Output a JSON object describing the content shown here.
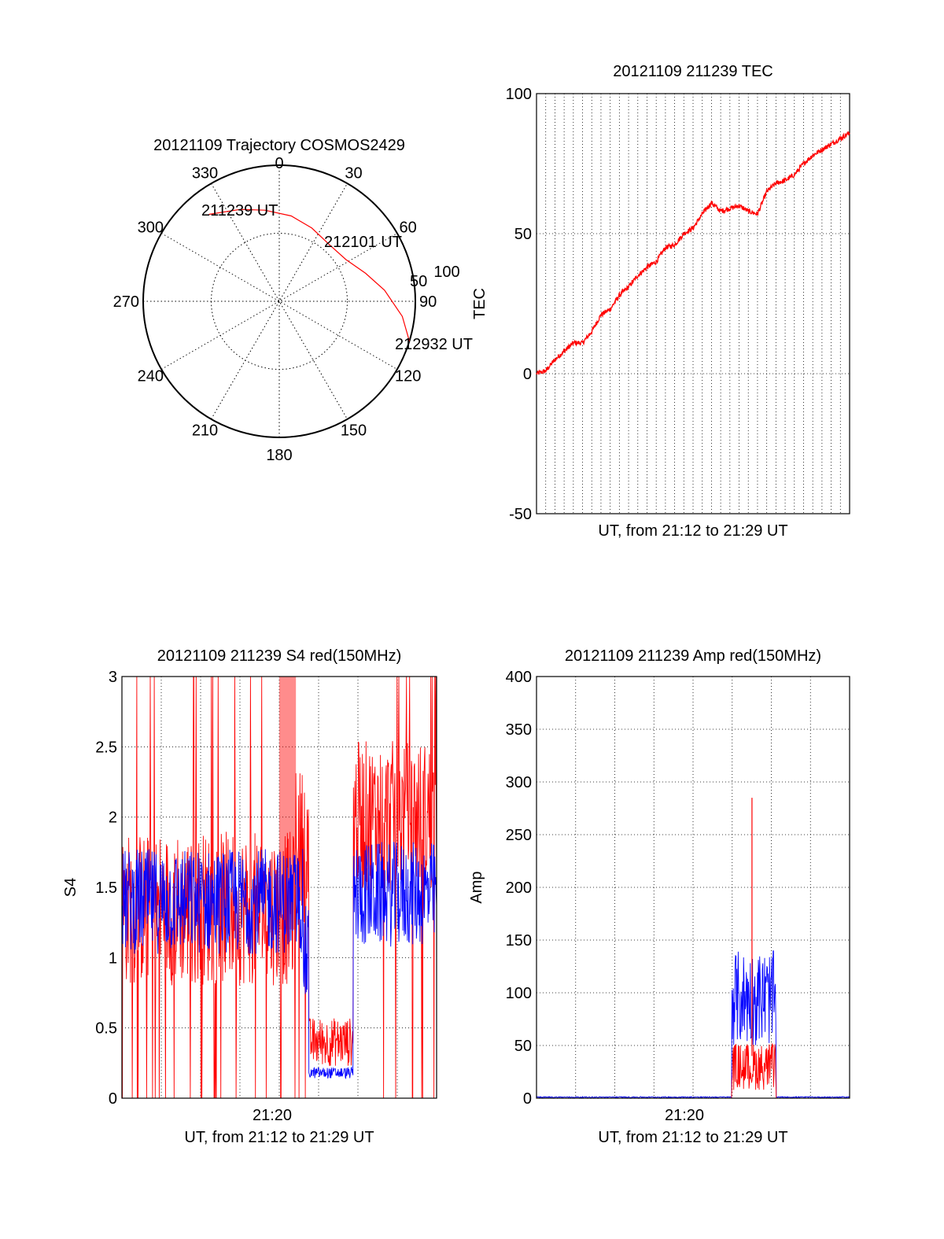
{
  "colors": {
    "red": "#ff0000",
    "blue": "#0000ff",
    "grid": "#000000"
  },
  "chart_data": [
    {
      "id": "trajectory",
      "type": "polar",
      "title": "20121109 Trajectory COSMOS2429",
      "azimuth_labels": [
        "0",
        "30",
        "60",
        "90",
        "120",
        "150",
        "180",
        "210",
        "240",
        "270",
        "300",
        "330"
      ],
      "elevation_ticks": [
        "50",
        "100"
      ],
      "track": [
        {
          "az": 321,
          "el": 16
        },
        {
          "az": 337,
          "el": 24
        },
        {
          "az": 351,
          "el": 29
        },
        {
          "az": 8,
          "el": 33
        },
        {
          "az": 24,
          "el": 37
        },
        {
          "az": 42,
          "el": 40
        },
        {
          "az": 58,
          "el": 38
        },
        {
          "az": 72,
          "el": 30
        },
        {
          "az": 84,
          "el": 20
        },
        {
          "az": 97,
          "el": 8
        },
        {
          "az": 107,
          "el": 0
        }
      ],
      "annotations": [
        "211239 UT",
        "212101 UT",
        "212932 UT"
      ]
    },
    {
      "id": "tec",
      "type": "line",
      "title": "20121109 211239 TEC",
      "ylabel": "TEC",
      "xlabel": "UT, from 21:12 to 21:29 UT",
      "ylim": [
        -50,
        100
      ],
      "yticks": [
        "100",
        "50",
        "0",
        "-50"
      ],
      "xlim_minutes": [
        0,
        17
      ],
      "series": [
        {
          "color": "red",
          "x": [
            0.0,
            0.5,
            1.0,
            1.5,
            2.0,
            2.5,
            3.0,
            3.5,
            4.0,
            4.5,
            5.0,
            5.5,
            6.0,
            6.5,
            7.0,
            7.5,
            8.0,
            8.5,
            9.0,
            9.5,
            10.0,
            10.5,
            11.0,
            11.5,
            12.0,
            12.5,
            13.0,
            13.5,
            14.0,
            14.5,
            15.0,
            15.5,
            16.0,
            16.5,
            17.0
          ],
          "y": [
            0,
            1,
            5,
            8,
            11,
            11,
            15,
            21,
            23,
            28,
            31,
            35,
            38,
            40,
            45,
            46,
            50,
            52,
            57,
            61,
            58,
            59,
            60,
            58,
            57,
            65,
            68,
            69,
            71,
            75,
            78,
            80,
            82,
            84,
            86
          ]
        }
      ]
    },
    {
      "id": "s4",
      "type": "line",
      "title": "20121109 211239 S4 red(150MHz)",
      "ylabel": "S4",
      "xlabel": "UT, from 21:12 to 21:29 UT",
      "xtick": "21:20",
      "ylim": [
        0,
        3
      ],
      "yticks": [
        "3",
        "2.5",
        "2",
        "1.5",
        "1",
        "0.5",
        "0"
      ],
      "series": [
        {
          "color": "red",
          "description_ranges": [
            [
              0,
              9.3,
              1.35
            ],
            [
              9.3,
              10.1,
              1.8
            ],
            [
              10.1,
              12.5,
              0.4
            ],
            [
              12.5,
              17,
              2.0
            ]
          ]
        },
        {
          "color": "blue",
          "description_ranges": [
            [
              0,
              9.8,
              1.4
            ],
            [
              9.8,
              10.1,
              1.0
            ],
            [
              10.1,
              12.5,
              0.18
            ],
            [
              12.5,
              17,
              1.45
            ]
          ]
        }
      ]
    },
    {
      "id": "amp",
      "type": "line",
      "title": "20121109 211239 Amp red(150MHz)",
      "ylabel": "Amp",
      "xlabel": "UT, from 21:12 to 21:29 UT",
      "xtick": "21:20",
      "ylim": [
        0,
        400
      ],
      "yticks": [
        "400",
        "350",
        "300",
        "250",
        "200",
        "150",
        "100",
        "50",
        "0"
      ],
      "series": [
        {
          "color": "blue",
          "description_ranges": [
            [
              0,
              10.6,
              1
            ],
            [
              10.6,
              13.0,
              95
            ],
            [
              13.0,
              17,
              1
            ]
          ]
        },
        {
          "color": "red",
          "description_ranges": [
            [
              0,
              10.6,
              0
            ],
            [
              10.6,
              13.0,
              30
            ],
            [
              13.0,
              17,
              0
            ]
          ]
        }
      ]
    }
  ]
}
